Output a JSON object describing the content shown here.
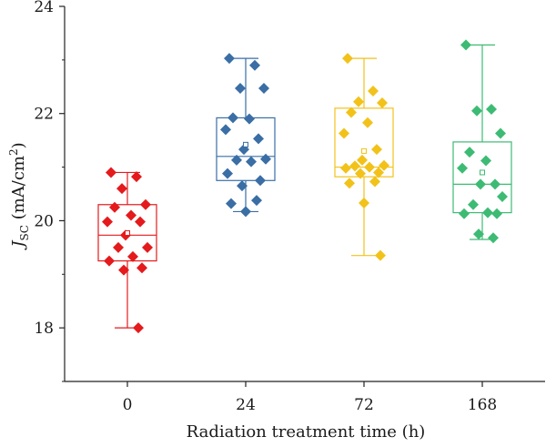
{
  "chart_data": {
    "type": "box",
    "title": "",
    "xlabel": "Radiation treatment time (h)",
    "ylabel_main": "J",
    "ylabel_sub": "SC",
    "ylabel_rest": " (mA/cm",
    "ylabel_sup": "2",
    "ylabel_end": ")",
    "ylim": [
      17,
      24
    ],
    "yticks": [
      18,
      20,
      22,
      24
    ],
    "yminor": [
      17,
      19,
      21,
      23
    ],
    "grid": false,
    "categories": [
      "0",
      "24",
      "72",
      "168"
    ],
    "series": [
      {
        "category": "0",
        "color": "#e41a1c",
        "whisker_low": 18.0,
        "q1": 19.25,
        "median": 19.73,
        "q3": 20.3,
        "whisker_high": 20.9,
        "mean": 19.77,
        "points": [
          20.9,
          20.82,
          20.6,
          20.3,
          20.25,
          20.1,
          19.98,
          19.98,
          19.73,
          19.5,
          19.5,
          19.33,
          19.25,
          19.12,
          19.08,
          18.0
        ]
      },
      {
        "category": "24",
        "color": "#3a6ea5",
        "whisker_low": 20.17,
        "q1": 20.75,
        "median": 21.2,
        "q3": 21.92,
        "whisker_high": 23.03,
        "mean": 21.42,
        "points": [
          23.03,
          22.9,
          22.47,
          22.47,
          21.92,
          21.9,
          21.7,
          21.53,
          21.33,
          21.15,
          21.13,
          21.1,
          20.88,
          20.75,
          20.65,
          20.38,
          20.32,
          20.17
        ]
      },
      {
        "category": "72",
        "color": "#f2c21a",
        "whisker_low": 19.35,
        "q1": 20.82,
        "median": 21.0,
        "q3": 22.1,
        "whisker_high": 23.03,
        "mean": 21.3,
        "points": [
          23.03,
          22.42,
          22.22,
          22.2,
          22.02,
          21.83,
          21.63,
          21.33,
          21.13,
          21.03,
          21.02,
          21.0,
          20.98,
          20.9,
          20.88,
          20.73,
          20.7,
          20.33,
          19.35
        ]
      },
      {
        "category": "168",
        "color": "#3dbb74",
        "whisker_low": 19.65,
        "q1": 20.15,
        "median": 20.68,
        "q3": 21.47,
        "whisker_high": 23.28,
        "mean": 20.9,
        "points": [
          23.28,
          22.08,
          22.05,
          21.63,
          21.28,
          21.12,
          20.98,
          20.68,
          20.68,
          20.45,
          20.3,
          20.15,
          20.13,
          20.13,
          19.75,
          19.68
        ]
      }
    ]
  }
}
